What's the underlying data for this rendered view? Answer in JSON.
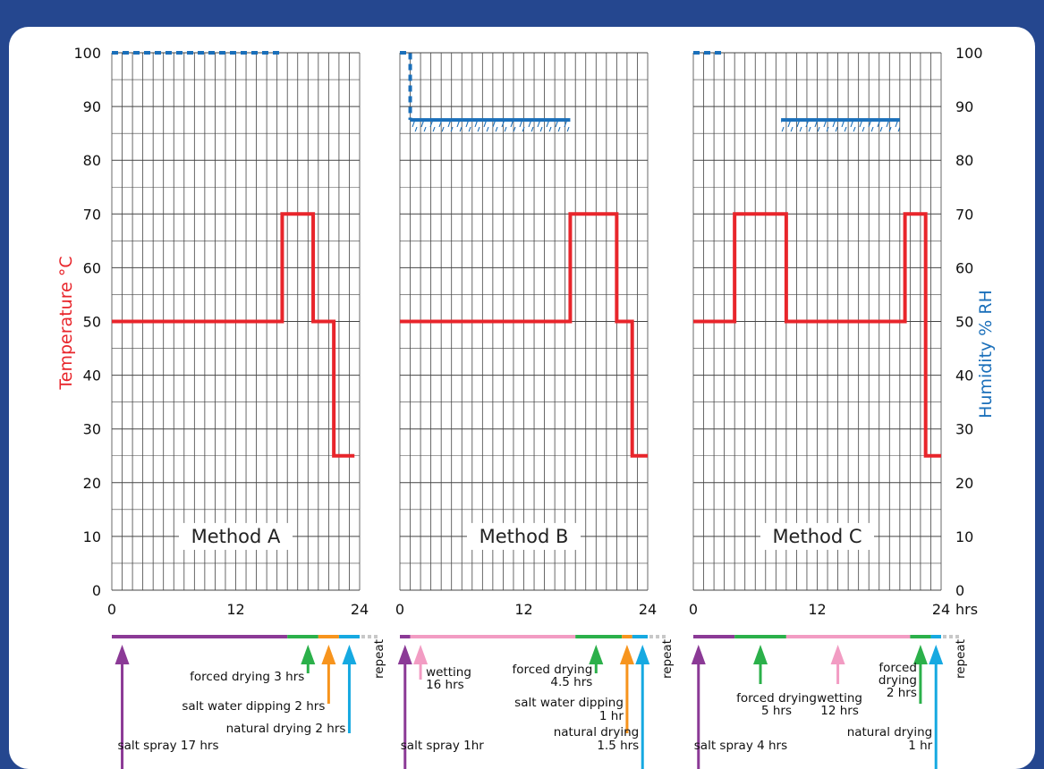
{
  "chart_data": {
    "type": "line",
    "y_left": {
      "label": "Temperature °C",
      "ticks": [
        "0",
        "10",
        "20",
        "30",
        "40",
        "50",
        "60",
        "70",
        "80",
        "90",
        "100"
      ],
      "range": [
        0,
        100
      ]
    },
    "y_right": {
      "label": "Humidity % RH",
      "ticks": [
        "0",
        "10",
        "20",
        "30",
        "40",
        "50",
        "60",
        "70",
        "80",
        "90",
        "100"
      ],
      "range": [
        0,
        100
      ]
    },
    "x_ticks": [
      "0",
      "12",
      "24"
    ],
    "x_unit": "hrs",
    "grid": true,
    "colors": {
      "temperature": "#e8252b",
      "humidity": "#1a6fba",
      "salt_spray": "#8b3a96",
      "forced_drying": "#2bb04a",
      "salt_water_dipping": "#f7941d",
      "natural_drying": "#16a9e1",
      "wetting": "#f29cc3",
      "repeat": "#c8c8c8"
    },
    "methods": [
      {
        "label": "Method A",
        "temperature": [
          [
            0,
            50
          ],
          [
            16.5,
            50
          ],
          [
            16.5,
            70
          ],
          [
            19.5,
            70
          ],
          [
            19.5,
            50
          ],
          [
            21.5,
            50
          ],
          [
            21.5,
            25
          ],
          [
            23.5,
            25
          ]
        ],
        "humidity_dotted": [
          [
            0,
            100
          ],
          [
            16.5,
            100
          ]
        ],
        "humidity_hatched": null,
        "phases": [
          {
            "phase": "salt_spray",
            "start": 0,
            "end": 17
          },
          {
            "phase": "forced_drying",
            "start": 17,
            "end": 20
          },
          {
            "phase": "salt_water_dipping",
            "start": 20,
            "end": 22
          },
          {
            "phase": "natural_drying",
            "start": 22,
            "end": 24
          }
        ],
        "annotations": [
          {
            "lines": [
              "forced drying 3 hrs"
            ],
            "phase": "forced_drying",
            "arrow_x": 19
          },
          {
            "lines": [
              "salt water dipping 2 hrs"
            ],
            "phase": "salt_water_dipping",
            "arrow_x": 21
          },
          {
            "lines": [
              "natural drying 2 hrs"
            ],
            "phase": "natural_drying",
            "arrow_x": 23
          },
          {
            "lines": [
              "salt spray 17 hrs"
            ],
            "phase": "salt_spray",
            "arrow_x": 1
          }
        ]
      },
      {
        "label": "Method B",
        "temperature": [
          [
            0,
            50
          ],
          [
            16.5,
            50
          ],
          [
            16.5,
            70
          ],
          [
            21,
            70
          ],
          [
            21,
            50
          ],
          [
            22.5,
            50
          ],
          [
            22.5,
            25
          ],
          [
            24,
            25
          ]
        ],
        "humidity_dotted": [
          [
            0,
            100
          ],
          [
            1,
            100
          ],
          [
            1,
            87.5
          ]
        ],
        "humidity_hatched": [
          [
            1,
            87.5
          ],
          [
            16.5,
            87.5
          ]
        ],
        "phases": [
          {
            "phase": "salt_spray",
            "start": 0,
            "end": 1
          },
          {
            "phase": "wetting",
            "start": 1,
            "end": 17
          },
          {
            "phase": "forced_drying",
            "start": 17,
            "end": 21.5
          },
          {
            "phase": "salt_water_dipping",
            "start": 21.5,
            "end": 22.5
          },
          {
            "phase": "natural_drying",
            "start": 22.5,
            "end": 24
          }
        ],
        "annotations": [
          {
            "lines": [
              "wetting",
              "16 hrs"
            ],
            "phase": "wetting",
            "arrow_x": 2
          },
          {
            "lines": [
              "forced drying",
              "4.5 hrs"
            ],
            "phase": "forced_drying",
            "arrow_x": 19
          },
          {
            "lines": [
              "salt water dipping",
              "1 hr"
            ],
            "phase": "salt_water_dipping",
            "arrow_x": 22
          },
          {
            "lines": [
              "natural drying",
              "1.5 hrs"
            ],
            "phase": "natural_drying",
            "arrow_x": 23.5
          },
          {
            "lines": [
              "salt spray 1hr"
            ],
            "phase": "salt_spray",
            "arrow_x": 0.5
          }
        ]
      },
      {
        "label": "Method C",
        "temperature": [
          [
            0,
            50
          ],
          [
            4,
            50
          ],
          [
            4,
            70
          ],
          [
            9,
            70
          ],
          [
            9,
            50
          ],
          [
            20.5,
            50
          ],
          [
            20.5,
            70
          ],
          [
            22.5,
            70
          ],
          [
            22.5,
            25
          ],
          [
            24,
            25
          ]
        ],
        "humidity_dotted": [
          [
            0,
            100
          ],
          [
            3,
            100
          ]
        ],
        "humidity_hatched": [
          [
            8.5,
            87.5
          ],
          [
            20,
            87.5
          ]
        ],
        "phases": [
          {
            "phase": "salt_spray",
            "start": 0,
            "end": 4
          },
          {
            "phase": "forced_drying",
            "start": 4,
            "end": 9
          },
          {
            "phase": "wetting",
            "start": 9,
            "end": 21
          },
          {
            "phase": "forced_drying",
            "start": 21,
            "end": 23
          },
          {
            "phase": "natural_drying",
            "start": 23,
            "end": 24
          }
        ],
        "annotations": [
          {
            "lines": [
              "forced drying",
              "5 hrs"
            ],
            "phase": "forced_drying",
            "arrow_x": 6.5
          },
          {
            "lines": [
              "wetting",
              "12 hrs"
            ],
            "phase": "wetting",
            "arrow_x": 14
          },
          {
            "lines": [
              "forced",
              "drying",
              "2 hrs"
            ],
            "phase": "forced_drying",
            "arrow_x": 22
          },
          {
            "lines": [
              "natural drying",
              "1 hr"
            ],
            "phase": "natural_drying",
            "arrow_x": 23.5
          },
          {
            "lines": [
              "salt spray 4 hrs"
            ],
            "phase": "salt_spray",
            "arrow_x": 0.5
          }
        ]
      }
    ],
    "repeat_label": "repeat"
  }
}
